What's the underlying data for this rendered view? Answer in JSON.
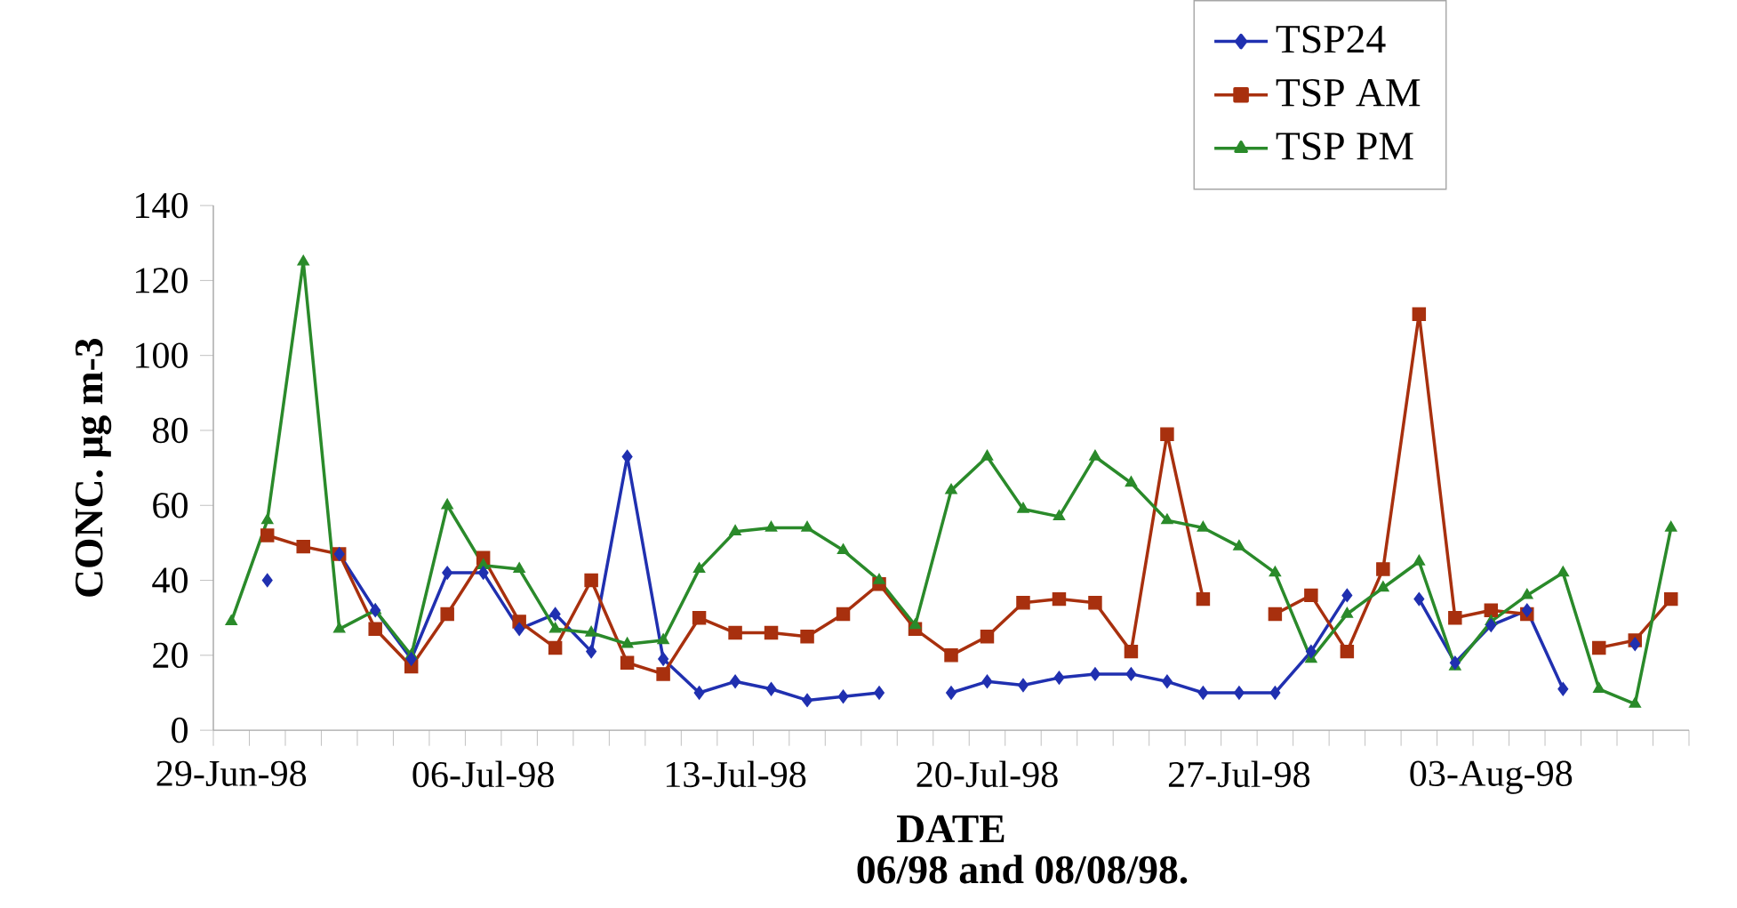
{
  "chart_data": {
    "type": "line",
    "xlabel": "DATE",
    "ylabel": "CONC. μg m-3",
    "annotations": [
      "06/98 and 08/08/98."
    ],
    "categories": [
      "29-Jun-98",
      null,
      null,
      null,
      null,
      null,
      null,
      "06-Jul-98",
      null,
      null,
      null,
      null,
      null,
      null,
      "13-Jul-98",
      null,
      null,
      null,
      null,
      null,
      null,
      "20-Jul-98",
      null,
      null,
      null,
      null,
      null,
      null,
      "27-Jul-98",
      null,
      null,
      null,
      null,
      null,
      null,
      "03-Aug-98",
      null,
      null,
      null,
      null,
      null
    ],
    "ylim": [
      0,
      140
    ],
    "yticks": [
      0,
      20,
      40,
      60,
      80,
      100,
      120,
      140
    ],
    "legend": "top",
    "grid": false,
    "series": [
      {
        "name": "TSP24",
        "color": "#2030b0",
        "marker": "diamond",
        "values": [
          null,
          40,
          null,
          47,
          32,
          19,
          42,
          42,
          27,
          31,
          21,
          73,
          19,
          10,
          13,
          11,
          8,
          9,
          10,
          null,
          10,
          13,
          12,
          14,
          15,
          15,
          13,
          10,
          10,
          10,
          21,
          36,
          null,
          35,
          18,
          28,
          32,
          11,
          null,
          23,
          null
        ]
      },
      {
        "name": "TSP AM",
        "color": "#a8300e",
        "marker": "square",
        "values": [
          null,
          52,
          49,
          47,
          27,
          17,
          31,
          46,
          29,
          22,
          40,
          18,
          15,
          30,
          26,
          26,
          25,
          31,
          39,
          27,
          20,
          25,
          34,
          35,
          34,
          21,
          79,
          35,
          null,
          31,
          36,
          21,
          43,
          111,
          30,
          32,
          31,
          null,
          22,
          24,
          35
        ]
      },
      {
        "name": "TSP PM",
        "color": "#2a8a2a",
        "marker": "triangle",
        "values": [
          29,
          56,
          125,
          27,
          32,
          20,
          60,
          44,
          43,
          27,
          26,
          23,
          24,
          43,
          53,
          54,
          54,
          48,
          40,
          28,
          64,
          73,
          59,
          57,
          73,
          66,
          56,
          54,
          49,
          42,
          19,
          31,
          38,
          45,
          17,
          29,
          36,
          42,
          11,
          7,
          54
        ]
      }
    ]
  }
}
